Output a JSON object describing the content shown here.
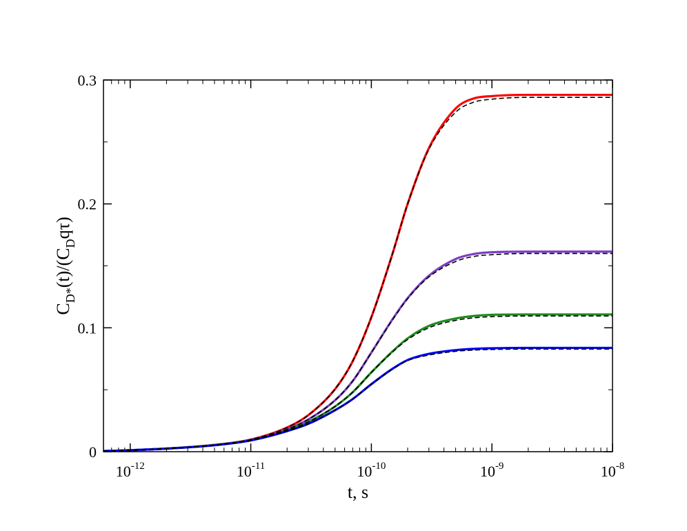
{
  "chart_data": {
    "type": "line",
    "title": "",
    "xlabel": "t, s",
    "ylabel": {
      "main": "C",
      "sub1": "D*",
      "mid": "(t)/(C",
      "sub2": "D",
      "tail": "qτ)"
    },
    "x_scale": "log",
    "xlim": [
      6e-13,
      1e-08
    ],
    "ylim": [
      0,
      0.3
    ],
    "x_ticks": [
      {
        "value": 1e-12,
        "base": "10",
        "exp": "-12"
      },
      {
        "value": 1e-11,
        "base": "10",
        "exp": "-11"
      },
      {
        "value": 1e-10,
        "base": "10",
        "exp": "-10"
      },
      {
        "value": 1e-09,
        "base": "10",
        "exp": "-9"
      },
      {
        "value": 1e-08,
        "base": "10",
        "exp": "-8"
      }
    ],
    "y_ticks": [
      {
        "value": 0,
        "label": "0"
      },
      {
        "value": 0.1,
        "label": "0.1"
      },
      {
        "value": 0.2,
        "label": "0.2"
      },
      {
        "value": 0.3,
        "label": "0.3"
      }
    ],
    "y_minor_ticks": [
      0.05,
      0.15,
      0.25
    ],
    "grid": false,
    "legend": "none",
    "x": [
      6e-13,
      1e-12,
      2e-12,
      5e-12,
      1e-11,
      2e-11,
      3e-11,
      5e-11,
      7e-11,
      1e-10,
      1.5e-10,
      2e-10,
      3e-10,
      5e-10,
      7e-10,
      1e-09,
      2e-09,
      5e-09,
      1e-08
    ],
    "series": [
      {
        "color": "#ff0000",
        "style": "solid",
        "values": [
          0.0005,
          0.0012,
          0.0025,
          0.0055,
          0.0098,
          0.0195,
          0.0295,
          0.0505,
          0.073,
          0.1085,
          0.16,
          0.2,
          0.245,
          0.277,
          0.285,
          0.287,
          0.288,
          0.288,
          0.288
        ]
      },
      {
        "color": "#000000",
        "style": "dashed",
        "values": [
          0.0005,
          0.0012,
          0.0025,
          0.0055,
          0.0098,
          0.0195,
          0.0295,
          0.0505,
          0.073,
          0.1085,
          0.16,
          0.2,
          0.244,
          0.274,
          0.282,
          0.2845,
          0.286,
          0.286,
          0.286
        ]
      },
      {
        "color": "#7b3fc4",
        "style": "solid",
        "values": [
          0.0005,
          0.0012,
          0.0025,
          0.0054,
          0.0095,
          0.018,
          0.026,
          0.0415,
          0.057,
          0.08,
          0.107,
          0.124,
          0.142,
          0.1555,
          0.1595,
          0.161,
          0.1615,
          0.1615,
          0.1615
        ]
      },
      {
        "color": "#000000",
        "style": "dashed",
        "values": [
          0.0005,
          0.0012,
          0.0025,
          0.0054,
          0.0095,
          0.018,
          0.026,
          0.0415,
          0.057,
          0.08,
          0.1065,
          0.1235,
          0.141,
          0.1535,
          0.1575,
          0.159,
          0.16,
          0.16,
          0.16
        ]
      },
      {
        "color": "#1e8c1e",
        "style": "solid",
        "values": [
          0.0005,
          0.0012,
          0.0025,
          0.0053,
          0.0093,
          0.0172,
          0.024,
          0.0365,
          0.048,
          0.064,
          0.081,
          0.0915,
          0.1015,
          0.1075,
          0.1095,
          0.1105,
          0.1108,
          0.1108,
          0.1108
        ]
      },
      {
        "color": "#000000",
        "style": "dashed",
        "values": [
          0.0005,
          0.0012,
          0.0025,
          0.0053,
          0.0093,
          0.0172,
          0.024,
          0.0365,
          0.048,
          0.064,
          0.0805,
          0.0905,
          0.1,
          0.106,
          0.108,
          0.109,
          0.1095,
          0.1095,
          0.1095
        ]
      },
      {
        "color": "#0000ff",
        "style": "solid",
        "values": [
          0.0005,
          0.0012,
          0.0025,
          0.0052,
          0.0091,
          0.0166,
          0.0225,
          0.0335,
          0.0425,
          0.0545,
          0.067,
          0.074,
          0.079,
          0.082,
          0.083,
          0.0835,
          0.0838,
          0.0838,
          0.0838
        ]
      },
      {
        "color": "#000000",
        "style": "dashed",
        "values": [
          0.0005,
          0.0012,
          0.0025,
          0.0052,
          0.0091,
          0.0166,
          0.0225,
          0.0335,
          0.0425,
          0.0545,
          0.0665,
          0.0735,
          0.078,
          0.081,
          0.082,
          0.0825,
          0.0828,
          0.0828,
          0.0828
        ]
      }
    ]
  }
}
